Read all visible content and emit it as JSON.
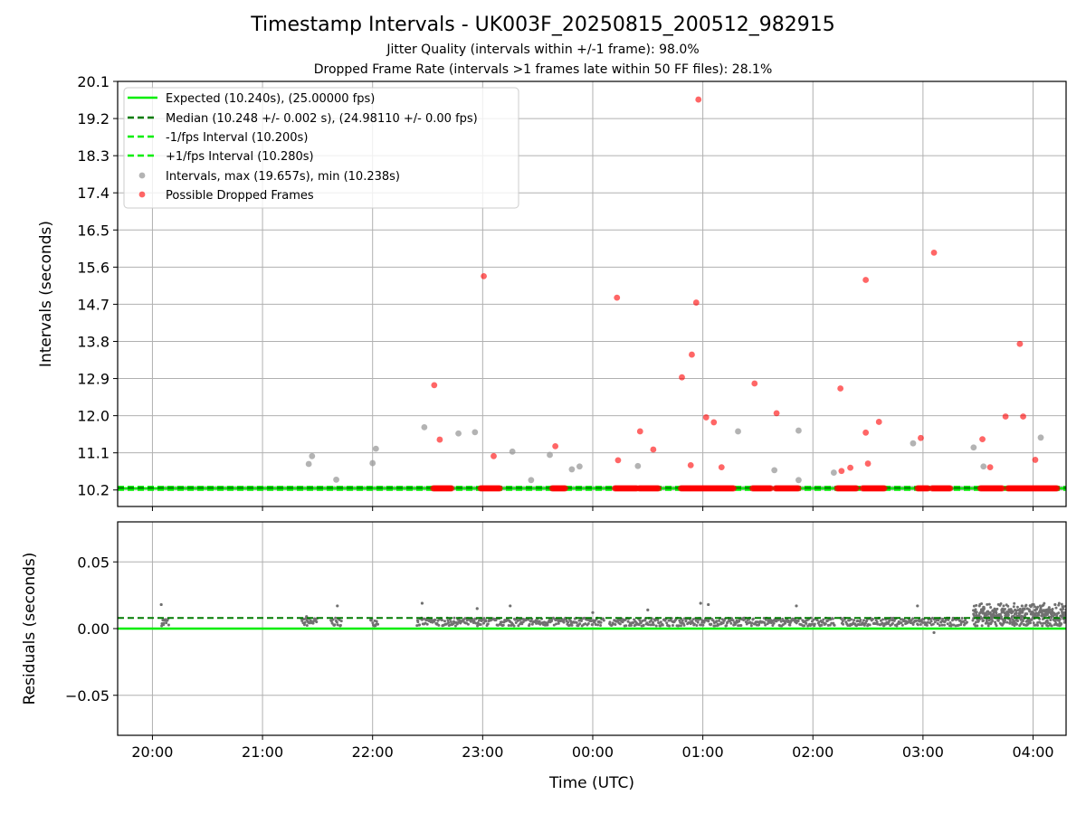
{
  "chart_data": [
    {
      "type": "scatter",
      "title": "Timestamp Intervals - UK003F_20250815_200512_982915",
      "subtitle_1": "Jitter Quality (intervals within +/-1 frame): 98.0%",
      "subtitle_2": "Dropped Frame Rate (intervals >1 frames late within 50 FF files): 28.1%",
      "ylabel": "Intervals (seconds)",
      "ylim": [
        9.8,
        20.1
      ],
      "yticks": [
        "10.2",
        "11.1",
        "12.0",
        "12.9",
        "13.8",
        "14.7",
        "15.6",
        "16.5",
        "17.4",
        "18.3",
        "19.2",
        "20.1"
      ],
      "grid": true,
      "legend_position": "upper-left",
      "reference_lines": [
        {
          "name": "Expected (10.240s), (25.00000 fps)",
          "y": 10.24,
          "style": "solid",
          "color": "#00ee00"
        },
        {
          "name": "Median (10.248 +/- 0.002 s), (24.98110 +/- 0.00 fps)",
          "y": 10.248,
          "style": "dashed",
          "color": "#007a00"
        },
        {
          "name": "-1/fps Interval (10.200s)",
          "y": 10.2,
          "style": "dashed",
          "color": "#00ee00"
        },
        {
          "name": "+1/fps Interval (10.280s)",
          "y": 10.28,
          "style": "dashed",
          "color": "#00ee00"
        }
      ],
      "series": [
        {
          "name": "Intervals, max (19.657s), min (10.238s)",
          "color": "#9a9a9a",
          "points": [
            [
              21.42,
              10.83
            ],
            [
              21.45,
              11.02
            ],
            [
              21.67,
              10.45
            ],
            [
              22.0,
              10.85
            ],
            [
              22.03,
              11.2
            ],
            [
              22.47,
              11.72
            ],
            [
              22.78,
              11.57
            ],
            [
              22.93,
              11.6
            ],
            [
              23.27,
              11.13
            ],
            [
              23.44,
              10.44
            ],
            [
              23.61,
              11.05
            ],
            [
              23.81,
              10.7
            ],
            [
              23.88,
              10.77
            ],
            [
              24.41,
              10.78
            ],
            [
              25.32,
              11.62
            ],
            [
              25.65,
              10.68
            ],
            [
              25.87,
              11.64
            ],
            [
              25.87,
              10.44
            ],
            [
              26.19,
              10.62
            ],
            [
              26.91,
              11.33
            ],
            [
              27.46,
              11.23
            ],
            [
              27.55,
              10.77
            ],
            [
              28.07,
              11.47
            ]
          ]
        },
        {
          "name": "Possible Dropped Frames",
          "color": "#ff0000",
          "points": [
            [
              22.56,
              12.74
            ],
            [
              22.61,
              11.42
            ],
            [
              23.01,
              15.38
            ],
            [
              23.1,
              11.02
            ],
            [
              23.66,
              11.26
            ],
            [
              24.22,
              14.86
            ],
            [
              24.23,
              10.92
            ],
            [
              24.43,
              11.62
            ],
            [
              24.55,
              11.18
            ],
            [
              24.81,
              12.93
            ],
            [
              24.89,
              10.8
            ],
            [
              24.9,
              13.48
            ],
            [
              24.94,
              14.74
            ],
            [
              24.96,
              19.66
            ],
            [
              25.03,
              11.96
            ],
            [
              25.1,
              11.84
            ],
            [
              25.17,
              10.75
            ],
            [
              25.47,
              12.78
            ],
            [
              25.67,
              12.06
            ],
            [
              26.25,
              12.66
            ],
            [
              26.26,
              10.66
            ],
            [
              26.34,
              10.74
            ],
            [
              26.48,
              15.29
            ],
            [
              26.48,
              11.59
            ],
            [
              26.5,
              10.84
            ],
            [
              26.6,
              11.85
            ],
            [
              26.98,
              11.46
            ],
            [
              27.1,
              15.95
            ],
            [
              27.54,
              11.43
            ],
            [
              27.61,
              10.75
            ],
            [
              27.75,
              11.98
            ],
            [
              27.88,
              13.74
            ],
            [
              27.91,
              11.98
            ],
            [
              28.02,
              10.93
            ]
          ],
          "clusters_at_10.24": [
            [
              22.55,
              22.72
            ],
            [
              22.98,
              23.16
            ],
            [
              23.63,
              23.75
            ],
            [
              24.2,
              24.4
            ],
            [
              24.42,
              24.6
            ],
            [
              24.8,
              25.28
            ],
            [
              25.45,
              25.62
            ],
            [
              25.66,
              25.87
            ],
            [
              26.22,
              26.4
            ],
            [
              26.45,
              26.65
            ],
            [
              26.95,
              27.05
            ],
            [
              27.08,
              27.25
            ],
            [
              27.52,
              27.72
            ],
            [
              27.77,
              28.22
            ]
          ]
        }
      ]
    },
    {
      "type": "scatter",
      "ylabel": "Residuals (seconds)",
      "xlabel": "Time (UTC)",
      "ylim": [
        -0.08,
        0.08
      ],
      "yticks": [
        "0.05",
        "0.00",
        "−0.05"
      ],
      "xticks": [
        "20:00",
        "21:00",
        "22:00",
        "23:00",
        "00:00",
        "01:00",
        "02:00",
        "03:00",
        "04:00"
      ],
      "grid": true,
      "reference_lines": [
        {
          "name": "Expected",
          "y": 0.0,
          "style": "solid",
          "color": "#00ee00"
        },
        {
          "name": "Median",
          "y": 0.008,
          "style": "dashed",
          "color": "#007a00"
        }
      ],
      "residual_points": [
        [
          20.08,
          0.018
        ],
        [
          20.1,
          0.003
        ],
        [
          21.4,
          0.009
        ],
        [
          21.68,
          0.017
        ],
        [
          22.45,
          0.019
        ],
        [
          22.95,
          0.015
        ],
        [
          23.25,
          0.017
        ],
        [
          24.0,
          0.012
        ],
        [
          24.5,
          0.014
        ],
        [
          24.98,
          0.019
        ],
        [
          25.05,
          0.018
        ],
        [
          25.85,
          0.017
        ],
        [
          26.95,
          0.017
        ],
        [
          27.1,
          -0.003
        ],
        [
          27.55,
          0.016
        ],
        [
          27.9,
          0.017
        ],
        [
          28.2,
          0.018
        ]
      ]
    }
  ]
}
